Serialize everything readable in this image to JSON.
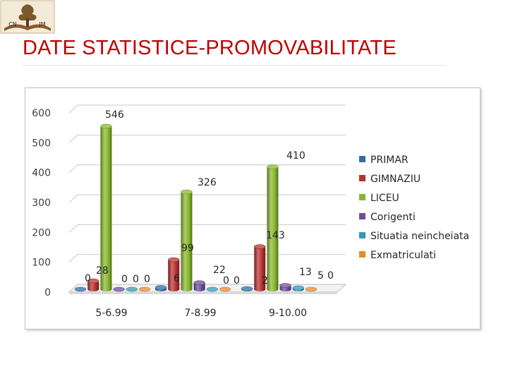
{
  "title": "DATE STATISTICE-PROMOVABILITATE",
  "logo": {
    "text": "CN JM"
  },
  "colors": {
    "title": "#c00000",
    "primar": "#2e6fa7",
    "gimnaziu": "#b8312f",
    "liceu": "#87b82c",
    "corigenti": "#6f4b9e",
    "neincheiata": "#2f9bb6",
    "exmatriculati": "#e58a2c"
  },
  "chart_data": {
    "type": "bar",
    "style": "3d-cylinder",
    "categories": [
      "5-6.99",
      "7-8.99",
      "9-10.00"
    ],
    "series": [
      {
        "name": "PRIMAR",
        "values": [
          0,
          6,
          2
        ]
      },
      {
        "name": "GIMNAZIU",
        "values": [
          28,
          99,
          143
        ]
      },
      {
        "name": "LICEU",
        "values": [
          546,
          326,
          410
        ]
      },
      {
        "name": "Corigenti",
        "values": [
          0,
          22,
          13
        ]
      },
      {
        "name": "Situatia neincheiata",
        "values": [
          0,
          0,
          5
        ]
      },
      {
        "name": "Exmatriculati",
        "values": [
          0,
          0,
          0
        ]
      }
    ],
    "yticks": [
      0,
      100,
      200,
      300,
      400,
      500,
      600
    ],
    "ylim": [
      0,
      600
    ],
    "grid": true,
    "legend": "right"
  }
}
